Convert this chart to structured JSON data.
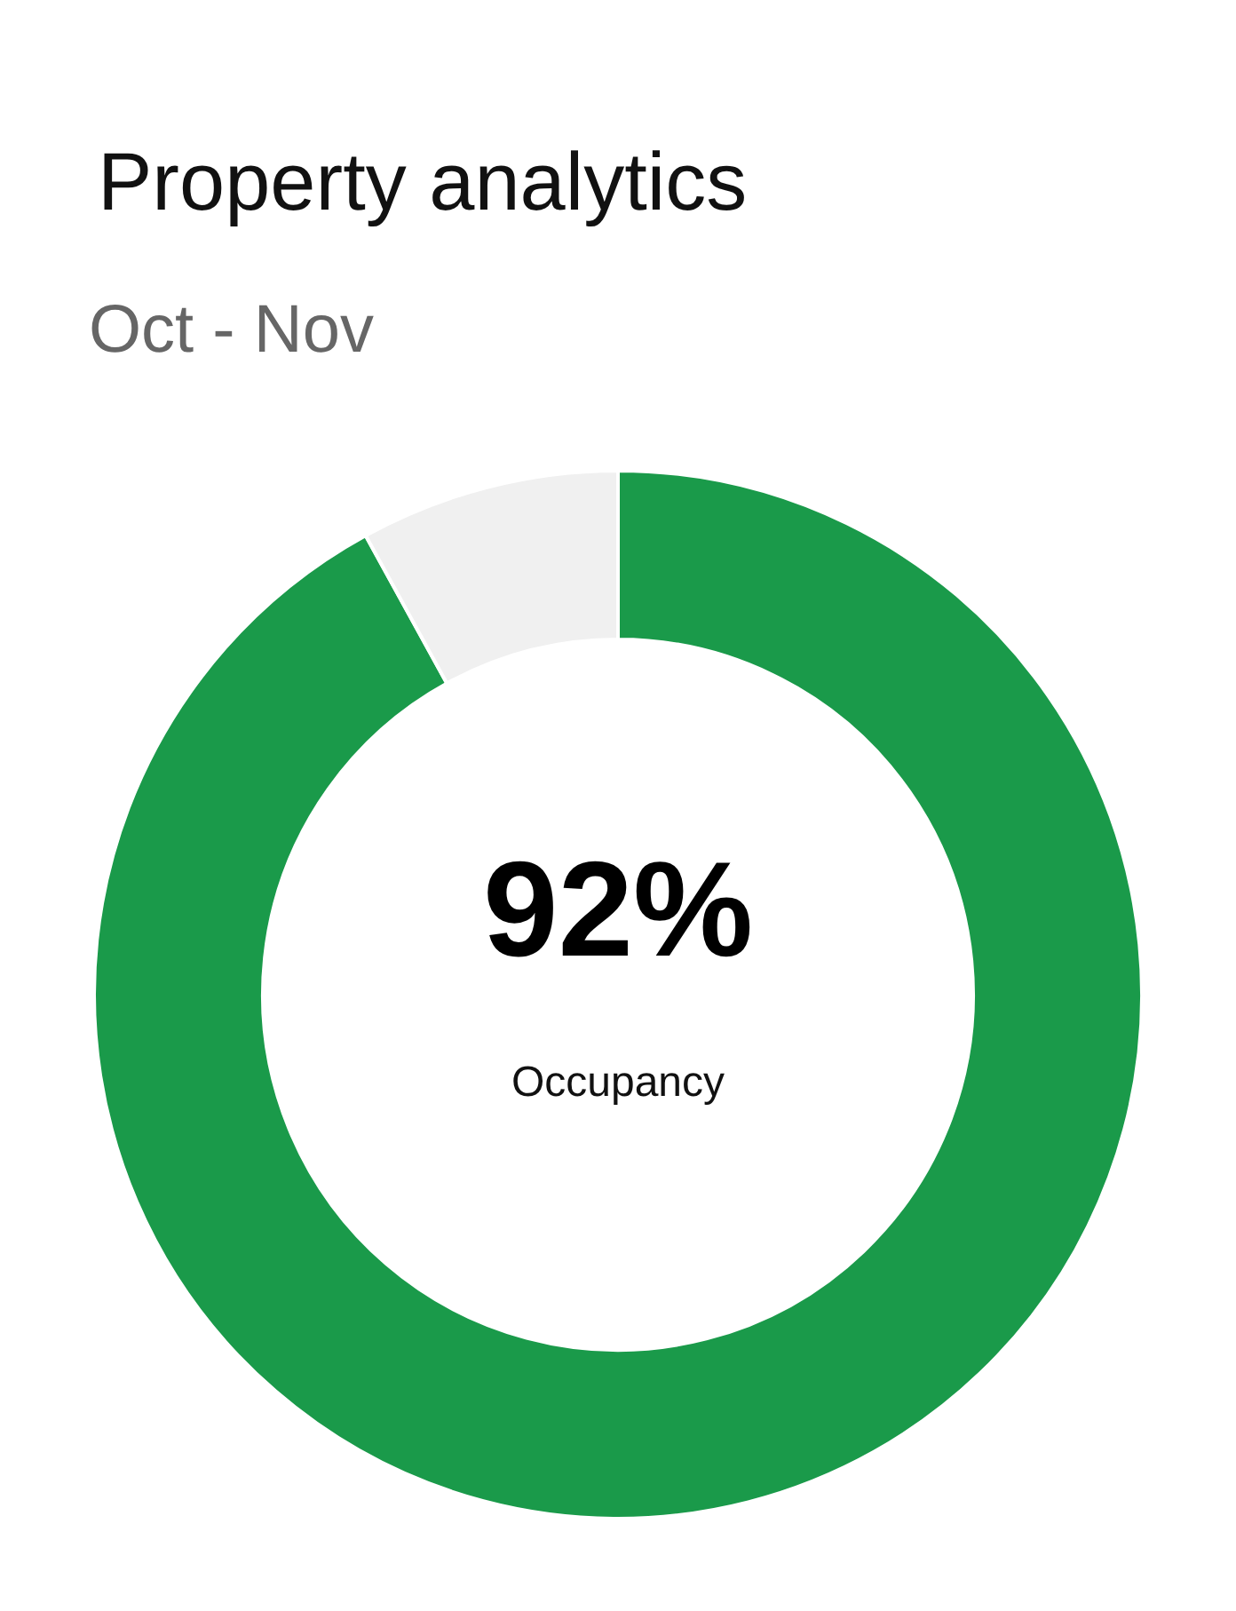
{
  "chart_data": {
    "type": "donut",
    "title": "Property analytics",
    "subtitle": "Oct - Nov",
    "categories": [
      "Occupancy",
      null
    ],
    "values": [
      92,
      8
    ],
    "colors": [
      "#1a9a4a",
      "#f0f0f0"
    ],
    "value_labels": [
      "92%",
      null
    ]
  }
}
